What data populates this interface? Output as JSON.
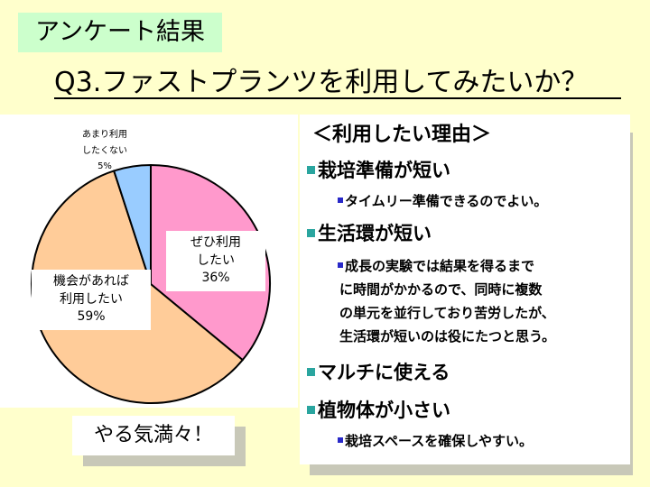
{
  "header": {
    "tag_label": "アンケート結果",
    "question_title": "Q3.ファストプランツを利用してみたいか？"
  },
  "chart_data": {
    "type": "pie",
    "slices": [
      {
        "label_lines": [
          "ぜひ利用",
          "したい"
        ],
        "percent_label": "36%",
        "value": 36,
        "color": "#ff99cc"
      },
      {
        "label_lines": [
          "機会があれば",
          "利用したい"
        ],
        "percent_label": "59%",
        "value": 59,
        "color": "#ffcc99"
      },
      {
        "label_lines": [
          "あまり利用",
          "したくない"
        ],
        "percent_label": "5%",
        "value": 5,
        "color": "#99ccff"
      }
    ]
  },
  "reasons": {
    "heading": "＜利用したい理由＞",
    "items": [
      {
        "title": "栽培準備が短い",
        "details": [
          "タイムリー準備できるのでよい。"
        ]
      },
      {
        "title": "生活環が短い",
        "details": [
          "成長の実験では結果を得るまで",
          "に時間がかかるので、同時に複数",
          "の単元を並行しており苦労したが、",
          "生活環が短いのは役にたつと思う。"
        ]
      },
      {
        "title": "マルチに使える",
        "details": []
      },
      {
        "title": "植物体が小さい",
        "details": [
          "栽培スペースを確保しやすい。"
        ]
      }
    ]
  },
  "callout": {
    "text": "やる気満々！"
  }
}
